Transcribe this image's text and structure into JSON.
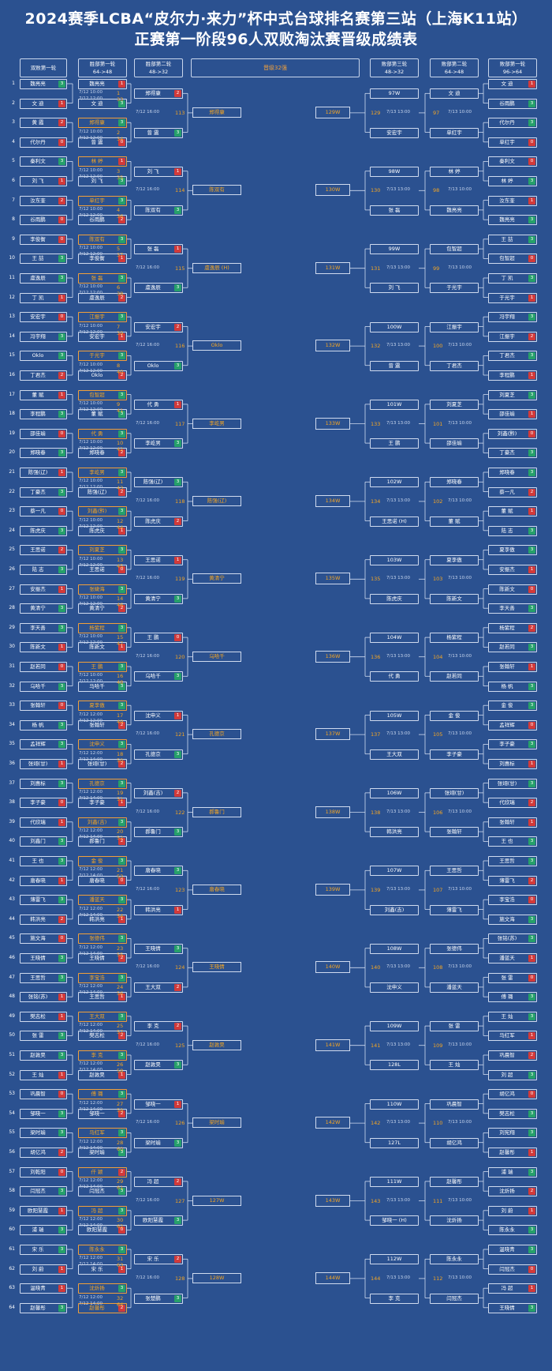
{
  "header": {
    "title_line1": "2024赛季LCBA“皮尔力·来力”杯中式台球排名赛第三站（上海K11站）",
    "title_line2": "正赛第一阶段96人双败淘汰赛晋级成绩表"
  },
  "columns": {
    "c1": {
      "line1": "双败第一轮",
      "line2": ""
    },
    "c2": {
      "line1": "胜部第一轮",
      "line2": "64->48"
    },
    "c3": {
      "line1": "胜部第二轮",
      "line2": "48->32"
    },
    "c4": {
      "line1": "晋级32强",
      "line2": ""
    },
    "c5": {
      "line1": "败部第三轮",
      "line2": "48->32"
    },
    "c6": {
      "line1": "败部第二轮",
      "line2": "64->48"
    },
    "c7": {
      "line1": "败部第一轮",
      "line2": "96->64"
    }
  },
  "left_players": [
    "魏亮亮",
    "文 迪",
    "黄 霞",
    "代尔丹",
    "秦利文",
    "刘 飞",
    "汝东奎",
    "谷雨鹏",
    "李俊衡",
    "王 喆",
    "虞逸辰",
    "丁 凯",
    "安宏宇",
    "冯宇翔",
    "Oklo",
    "丁君杰",
    "董 赋",
    "李程鹏",
    "邵佳瑜",
    "郑晓春",
    "陈强(辽)",
    "丁豪杰",
    "蔡一凡",
    "陈虎庆",
    "王思诺",
    "陆 志",
    "安振杰",
    "黄清宁",
    "李天善",
    "陈新文",
    "赵若同",
    "乌哈千",
    "张翰轩",
    "杨 帆",
    "孟祥辉",
    "张翊(甘)",
    "刘惠标",
    "李子豪",
    "代欣瑞",
    "刘鑫门",
    "王 也",
    "唐春晓",
    "薄雷飞",
    "韩洪亮",
    "施文海",
    "王晓倩",
    "王思哲",
    "张铭(苏)",
    "樊志松",
    "张 雷",
    "赵敦昊",
    "王 灿",
    "巩晨智",
    "邹晓一",
    "梁时瑜",
    "胡亿鸿",
    "刘乾阳",
    "闫冠杰",
    "欧阳慧霞",
    "浦 瑞",
    "宋 乐",
    "刘 蔚",
    "温晓青",
    "赵馨彤"
  ],
  "left_scores": [
    "3",
    "1",
    "2",
    "0",
    "3",
    "1",
    "2",
    "0",
    "0",
    "3",
    "3",
    "1",
    "0",
    "3",
    "3",
    "2",
    "1",
    "3",
    "0",
    "3",
    "1",
    "3",
    "0",
    "3",
    "2",
    "3",
    "1",
    "3",
    "3",
    "1",
    "0",
    "3",
    "0",
    "3",
    "3",
    "1",
    "3",
    "0",
    "1",
    "3",
    "3",
    "1",
    "3",
    "2",
    "0",
    "3",
    "3",
    "1",
    "1",
    "3",
    "3",
    "1",
    "0",
    "3",
    "3",
    "2",
    "0",
    "3",
    "1",
    "3",
    "3",
    "1",
    "1",
    "3"
  ],
  "r1_times": [
    "7/12 10:00",
    "7/12 10:00",
    "7/12 10:00",
    "7/12 10:00",
    "7/12 10:00",
    "7/12 10:00",
    "7/12 10:00",
    "7/12 10:00",
    "7/12 10:00",
    "7/12 10:00",
    "7/12 10:00",
    "7/12 10:00",
    "7/12 10:00",
    "7/12 10:00",
    "7/12 10:00",
    "7/12 10:00",
    "7/12 12:00",
    "7/12 12:00",
    "7/12 12:00",
    "7/12 12:00",
    "7/12 12:00",
    "7/12 12:00",
    "7/12 12:00",
    "7/12 12:00",
    "7/12 12:00",
    "7/12 12:00",
    "7/12 12:00",
    "7/12 12:00",
    "7/12 12:00",
    "7/12 12:00",
    "7/12 12:00",
    "7/12 12:00"
  ],
  "r1_numbers": [
    "1",
    "2",
    "3",
    "4",
    "5",
    "6",
    "7",
    "8",
    "9",
    "10",
    "11",
    "12",
    "13",
    "14",
    "15",
    "16",
    "17",
    "18",
    "19",
    "20",
    "21",
    "22",
    "23",
    "24",
    "25",
    "26",
    "27",
    "28",
    "29",
    "30",
    "31",
    "32"
  ],
  "col2_players": [
    "魏亮亮",
    "文 迪",
    "郑得康",
    "曾 震",
    "林 婷",
    "刘 飞",
    "单红宇",
    "谷雨鹏",
    "陈双有",
    "李俊衡",
    "张 磊",
    "虞逸辰",
    "江振宇",
    "安宏宇",
    "于光宇",
    "Oklo",
    "包智超",
    "董 赋",
    "代 勇",
    "郑晓春",
    "李屹男",
    "陈强(辽)",
    "刘鑫(黔)",
    "陈虎庆",
    "刘夏芝",
    "王思诺",
    "张婕海",
    "黄清宁",
    "杨紫程",
    "陈新文",
    "王 鹏",
    "马哈千",
    "夏李傲",
    "张翰轩",
    "沈申义",
    "张翊(甘)",
    "孔德京",
    "李子豪",
    "刘鑫(吉)",
    "郝鲁门",
    "金 俊",
    "唐春晓",
    "潘蓝天",
    "韩洪亮",
    "张德伟",
    "王晓倩",
    "李宝浩",
    "王思哲",
    "王大双",
    "樊志松",
    "李 克",
    "赵敦昊",
    "傅 璐",
    "邹晓一",
    "马红军",
    "梁时瑜",
    "仟 颖",
    "闫冠杰",
    "冯 超",
    "欧阳慧霞",
    "陈永永",
    "宋 乐",
    "沈炘扬",
    "赵馨彤"
  ],
  "col2_scores": [
    "1",
    "3",
    "3",
    "0",
    "1",
    "3",
    "3",
    "2",
    "3",
    "1",
    "3",
    "2",
    "3",
    "1",
    "3",
    "2",
    "3",
    "3",
    "3",
    "2",
    "3",
    "2",
    "3",
    "1",
    "3",
    "0",
    "3",
    "2",
    "3",
    "1",
    "3",
    "3",
    "3",
    "2",
    "3",
    "2",
    "3",
    "1",
    "3",
    "2",
    "3",
    "0",
    "3",
    "1",
    "3",
    "2",
    "3",
    "1",
    "3",
    "2",
    "3",
    "1",
    "3",
    "2",
    "3",
    "3",
    "2",
    "3",
    "3",
    "0",
    "3",
    "1",
    "3",
    "2"
  ],
  "col2_highlight": [
    false,
    false,
    true,
    false,
    true,
    false,
    true,
    false,
    true,
    false,
    true,
    false,
    true,
    false,
    true,
    false,
    true,
    false,
    true,
    false,
    true,
    false,
    true,
    false,
    true,
    false,
    true,
    false,
    true,
    false,
    true,
    false,
    true,
    false,
    true,
    false,
    true,
    false,
    true,
    false,
    true,
    false,
    true,
    false,
    true,
    false,
    true,
    false,
    true,
    false,
    true,
    false,
    true,
    false,
    true,
    false,
    true,
    false,
    true,
    false,
    true,
    false,
    true,
    true
  ],
  "r2_times": [
    "7/12 12:00",
    "7/12 12:00",
    "7/12 12:00",
    "7/12 12:00",
    "7/12 12:00",
    "7/12 12:00",
    "7/12 12:00",
    "7/12 12:00",
    "7/12 12:00",
    "7/12 12:00",
    "7/12 12:00",
    "7/12 12:00",
    "7/12 12:00",
    "7/12 12:00",
    "7/12 12:00",
    "7/12 12:00",
    "7/12 12:00",
    "7/12 14:00",
    "7/12 14:00",
    "7/12 14:00",
    "7/12 14:00",
    "7/12 14:00",
    "7/12 14:00",
    "7/12 14:00",
    "7/12 14:00",
    "7/12 14:00",
    "7/12 14:00",
    "7/12 14:00",
    "7/12 14:00",
    "7/12 14:00",
    "7/12 14:00",
    "7/12 14:00"
  ],
  "r2_numbers": [
    "33",
    "34",
    "35",
    "36",
    "37",
    "38",
    "39",
    "40",
    "41",
    "42",
    "43",
    "44",
    "45",
    "46",
    "47",
    "48",
    "49",
    "50",
    "51",
    "52",
    "53",
    "54",
    "55",
    "56",
    "57",
    "58",
    "59",
    "60",
    "61",
    "62",
    "63",
    "64"
  ],
  "col3_players": [
    "郑得康",
    "曾 震",
    "刘 飞",
    "陈双有",
    "张 磊",
    "虞逸辰",
    "安宏宇",
    "Oklo",
    "代 勇",
    "李屹男",
    "陈强(辽)",
    "陈虎庆",
    "王思诺",
    "黄清宁",
    "王 鹏",
    "乌哈千",
    "沈申义",
    "孔德京",
    "刘鑫(吉)",
    "郝鲁门",
    "唐春晓",
    "韩洪亮",
    "王晓倩",
    "王大双",
    "李 克",
    "赵敦昊",
    "邹晓一",
    "梁时瑜",
    "冯 超",
    "欧阳慧霞",
    "宋 乐",
    "张楚鹏"
  ],
  "col3_scores": [
    "2",
    "3",
    "1",
    "3",
    "1",
    "3",
    "2",
    "3",
    "1",
    "3",
    "3",
    "2",
    "1",
    "3",
    "0",
    "3",
    "1",
    "3",
    "2",
    "3",
    "3",
    "1",
    "3",
    "2",
    "2",
    "3",
    "1",
    "3",
    "2",
    "3",
    "2",
    "3"
  ],
  "r3_times": [
    "7/12 16:00",
    "7/12 16:00",
    "7/12 16:00",
    "7/12 16:00",
    "7/12 16:00",
    "7/12 16:00",
    "7/12 16:00",
    "7/12 16:00",
    "7/12 16:00",
    "7/12 16:00",
    "7/12 16:00",
    "7/12 16:00",
    "7/12 16:00",
    "7/12 16:00",
    "7/12 16:00",
    "7/12 16:00"
  ],
  "r3_numbers": [
    "113",
    "114",
    "115",
    "116",
    "117",
    "118",
    "119",
    "120",
    "121",
    "122",
    "123",
    "124",
    "125",
    "126",
    "127",
    "128"
  ],
  "qualifiers": [
    "郑得康",
    "陈双有",
    "虞逸辰 (H)",
    "Oklo",
    "李屹男",
    "陈强(辽)",
    "黄清宁",
    "乌哈千",
    "孔德京",
    "郝鲁门",
    "唐春晓",
    "王晓倩",
    "赵敦昊",
    "梁时瑜",
    "127W",
    "128W"
  ],
  "right_winner_boxes": [
    "129W",
    "130W",
    "131W",
    "132W",
    "133W",
    "134W",
    "135W",
    "136W",
    "137W",
    "138W",
    "139W",
    "140W",
    "141W",
    "142W",
    "143W",
    "144W"
  ],
  "right_r3_numbers": [
    "129",
    "130",
    "131",
    "132",
    "133",
    "134",
    "135",
    "136",
    "137",
    "138",
    "139",
    "140",
    "141",
    "142",
    "143",
    "144"
  ],
  "right_r3_times": [
    "7/13 13:00",
    "7/13 13:00",
    "7/13 13:00",
    "7/13 13:00",
    "7/13 13:00",
    "7/13 13:00",
    "7/13 13:00",
    "7/13 13:00",
    "7/13 13:00",
    "7/13 13:00",
    "7/13 13:00",
    "7/13 13:00",
    "7/13 13:00",
    "7/13 13:00",
    "7/13 13:00",
    "7/13 13:00"
  ],
  "right_col5": [
    [
      "97W",
      "安宏宇"
    ],
    [
      "98W",
      "张 磊"
    ],
    [
      "99W",
      "刘 飞"
    ],
    [
      "100W",
      "曾 震"
    ],
    [
      "101W",
      "王 鹏"
    ],
    [
      "102W",
      "王思诺 (H)"
    ],
    [
      "103W",
      "陈虎庆"
    ],
    [
      "104W",
      "代 勇"
    ],
    [
      "105W",
      "王大双"
    ],
    [
      "106W",
      "韩洪亮"
    ],
    [
      "107W",
      "刘鑫(吉)"
    ],
    [
      "108W",
      "沈申义"
    ],
    [
      "109W",
      "128L"
    ],
    [
      "110W",
      "127L"
    ],
    [
      "111W",
      "邹晓一 (H)"
    ],
    [
      "112W",
      "李 克"
    ]
  ],
  "right_r2_numbers": [
    "97",
    "98",
    "99",
    "100",
    "101",
    "102",
    "103",
    "104",
    "105",
    "106",
    "107",
    "108",
    "109",
    "110",
    "111",
    "112"
  ],
  "right_r2_times": [
    "7/13 10:00",
    "7/13 10:00",
    "7/13 10:00",
    "7/13 10:00",
    "7/13 10:00",
    "7/13 10:00",
    "7/13 10:00",
    "7/13 10:00",
    "7/13 10:00",
    "7/13 10:00",
    "7/13 10:00",
    "7/13 10:00",
    "7/13 10:00",
    "7/13 10:00",
    "7/13 10:00",
    "7/13 10:00"
  ],
  "right_col6": [
    [
      "文 迪",
      "单红宇"
    ],
    [
      "林 婷",
      "魏亮亮"
    ],
    [
      "包智超",
      "于光宇"
    ],
    [
      "江振宇",
      "丁君杰"
    ],
    [
      "刘夏芝",
      "邵佳瑜"
    ],
    [
      "郑晓春",
      "董 赋"
    ],
    [
      "夏李傲",
      "陈新文"
    ],
    [
      "杨紫程",
      "赵若同"
    ],
    [
      "金 俊",
      "李子豪"
    ],
    [
      "张翊(甘)",
      "张翰轩"
    ],
    [
      "王思哲",
      "薄雷飞"
    ],
    [
      "张德伟",
      "潘蓝天"
    ],
    [
      "张 雷",
      "王 灿"
    ],
    [
      "巩晨智",
      "胡亿鸿"
    ],
    [
      "赵馨彤",
      "沈炘扬"
    ],
    [
      "陈永永",
      "闫冠杰"
    ]
  ],
  "right_r1_numbers": [
    "65",
    "66",
    "67",
    "68",
    "69",
    "70",
    "71",
    "72",
    "73",
    "74",
    "75",
    "76",
    "77",
    "78",
    "79",
    "80",
    "81",
    "82",
    "83",
    "84",
    "85",
    "86",
    "87",
    "88",
    "89",
    "90",
    "91",
    "92",
    "93",
    "94",
    "95",
    "96"
  ],
  "right_r1_times": [
    "7/12 16:00",
    "7/12 16:00",
    "7/12 16:00",
    "7/12 16:00",
    "7/12 16:00",
    "7/12 16:00",
    "7/12 16:00",
    "7/12 16:00",
    "7/12 16:00",
    "7/12 16:00",
    "7/12 16:00",
    "7/12 16:00",
    "7/12 16:00",
    "7/12 16:00",
    "7/12 16:00",
    "7/12 16:00",
    "7/12 18:00",
    "7/12 18:00",
    "7/12 18:00",
    "7/12 18:00",
    "7/12 18:00",
    "7/12 18:00",
    "7/12 18:00",
    "7/12 18:00",
    "7/12 18:00",
    "7/12 18:00",
    "7/12 18:00",
    "7/12 18:00",
    "7/12 18:00",
    "7/12 18:00",
    "7/12 18:00",
    "7/12 18:00"
  ],
  "right_col7": [
    "文 迪",
    "谷雨鹏",
    "代尔丹",
    "单红宇",
    "秦利文",
    "林 婷",
    "汝东奎",
    "魏亮亮",
    "王 喆",
    "包智超",
    "丁 凯",
    "于光宇",
    "冯宇翔",
    "江振宇",
    "丁君杰",
    "李程鹏",
    "刘夏芝",
    "邵佳瑜",
    "刘鑫(黔)",
    "丁豪杰",
    "郑晓春",
    "蔡一凡",
    "董 赋",
    "陆 志",
    "夏李傲",
    "安振杰",
    "陈新文",
    "李天善",
    "杨紫程",
    "赵若同",
    "张翰轩",
    "杨 帆",
    "金 俊",
    "孟祥辉",
    "李子豪",
    "刘惠标",
    "张翊(甘)",
    "代欣瑞",
    "张翰轩",
    "王 也",
    "王思哲",
    "薄雷飞",
    "李宝浩",
    "施文海",
    "张铭(苏)",
    "潘蓝天",
    "张 雷",
    "傅 璐",
    "王 灿",
    "马红军",
    "巩晨智",
    "刘 超",
    "胡亿鸿",
    "樊志松",
    "刘宪翔",
    "赵馨彤",
    "浦 瑞",
    "沈炘扬",
    "刘 蔚",
    "陈永永",
    "温晓青",
    "闫冠杰",
    "冯 超",
    "王晓倩"
  ],
  "right_col7_scores": [
    "1",
    "3",
    "3",
    "0",
    "0",
    "3",
    "1",
    "3",
    "3",
    "0",
    "3",
    "1",
    "3",
    "2",
    "3",
    "1",
    "3",
    "1",
    "0",
    "3",
    "3",
    "2",
    "1",
    "3",
    "3",
    "1",
    "0",
    "3",
    "2",
    "3",
    "1",
    "3",
    "3",
    "0",
    "3",
    "1",
    "3",
    "2",
    "1",
    "3",
    "3",
    "2",
    "0",
    "3",
    "3",
    "1",
    "0",
    "3",
    "3",
    "1",
    "2",
    "3",
    "0",
    "3",
    "3",
    "1",
    "3",
    "2",
    "1",
    "3",
    "3",
    "0",
    "1",
    "3"
  ]
}
